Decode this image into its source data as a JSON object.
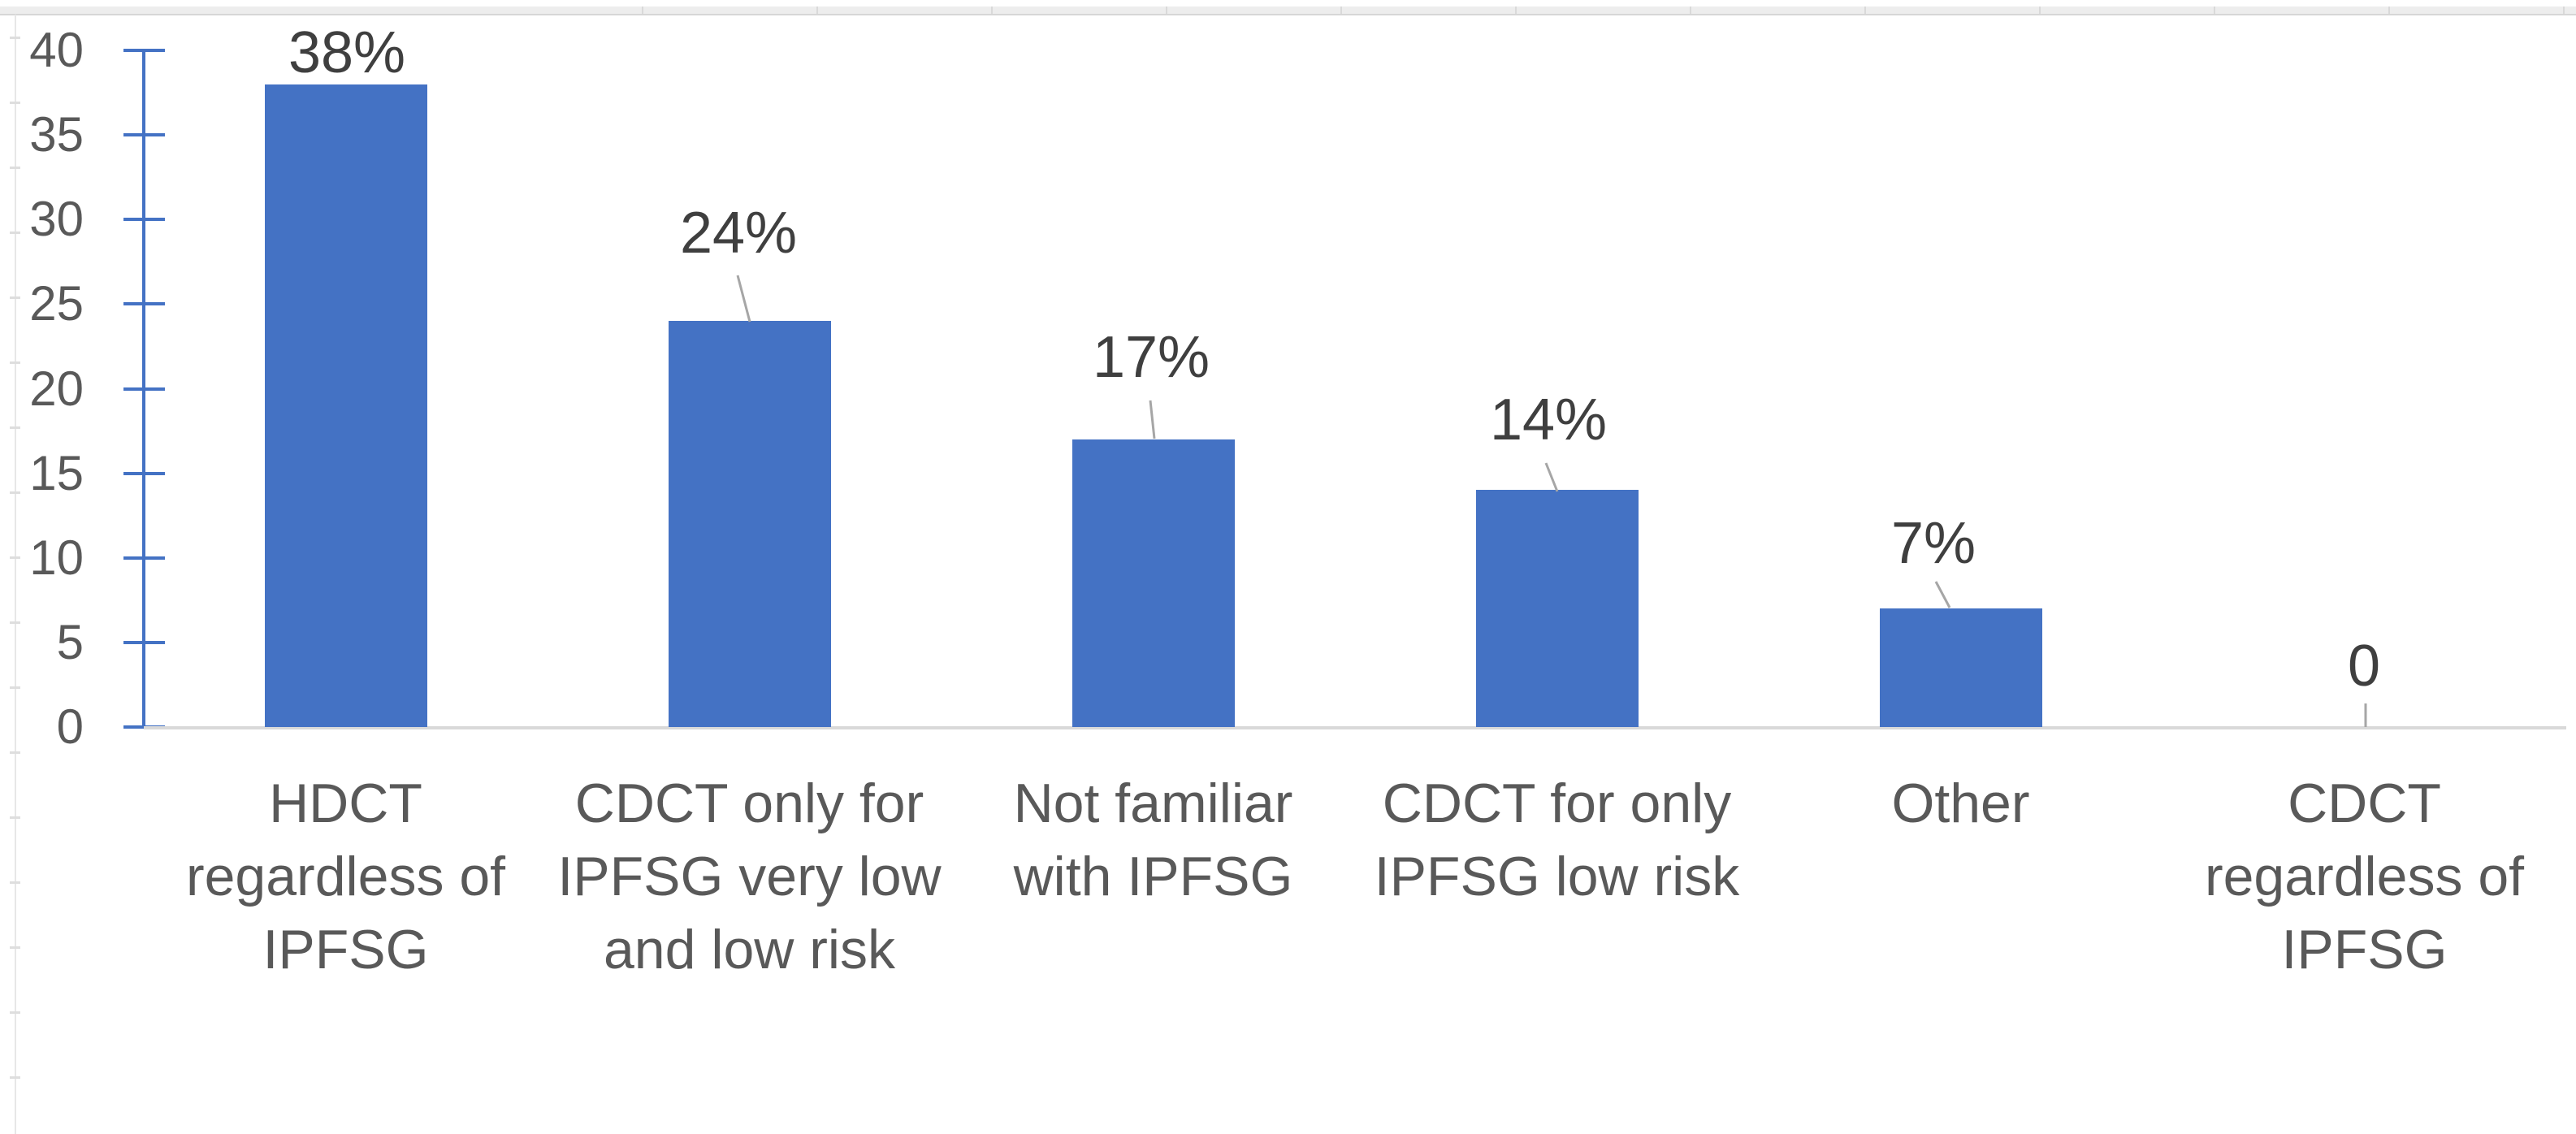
{
  "chart_data": {
    "type": "bar",
    "title": "",
    "xlabel": "",
    "ylabel": "",
    "categories": [
      "HDCT regardless of IPFSG",
      "CDCT only for IPFSG very low and low risk",
      "Not familiar with IPFSG",
      "CDCT for only IPFSG low risk",
      "Other",
      "CDCT regardless of IPFSG"
    ],
    "category_lines": [
      [
        "HDCT",
        "regardless of",
        "IPFSG"
      ],
      [
        "CDCT only for",
        "IPFSG very low",
        "and low risk"
      ],
      [
        "Not familiar",
        "with IPFSG"
      ],
      [
        "CDCT for only",
        "IPFSG low risk"
      ],
      [
        "Other"
      ],
      [
        "CDCT",
        "regardless of",
        "IPFSG"
      ]
    ],
    "values": [
      38,
      24,
      17,
      14,
      7,
      0
    ],
    "data_labels": [
      "38%",
      "24%",
      "17%",
      "14%",
      "7%",
      "0"
    ],
    "y_ticks": [
      0,
      5,
      10,
      15,
      20,
      25,
      30,
      35,
      40
    ],
    "ylim": [
      0,
      40
    ],
    "grid": false,
    "legend": false,
    "bar_color": "#4472C4",
    "axis_color": "#4472C4",
    "baseline_color": "#d9d9d9",
    "leader_line_color": "#a6a6a6",
    "tick_label_color": "#595959",
    "category_label_color": "#595959",
    "data_label_color": "#3f3f3f",
    "data_label_positions": [
      {
        "cx": 427,
        "top": 29,
        "leader": null
      },
      {
        "cx": 909,
        "top": 251,
        "leader": [
          908,
          339,
          923,
          396
        ]
      },
      {
        "cx": 1417,
        "top": 404,
        "leader": [
          1416,
          493,
          1421,
          540
        ]
      },
      {
        "cx": 1906,
        "top": 481,
        "leader": [
          1903,
          570,
          1917,
          605
        ]
      },
      {
        "cx": 2380,
        "top": 633,
        "leader": [
          2383,
          716,
          2400,
          748
        ]
      },
      {
        "cx": 2910,
        "top": 784,
        "leader": [
          2912,
          866,
          2912,
          895
        ]
      }
    ]
  }
}
